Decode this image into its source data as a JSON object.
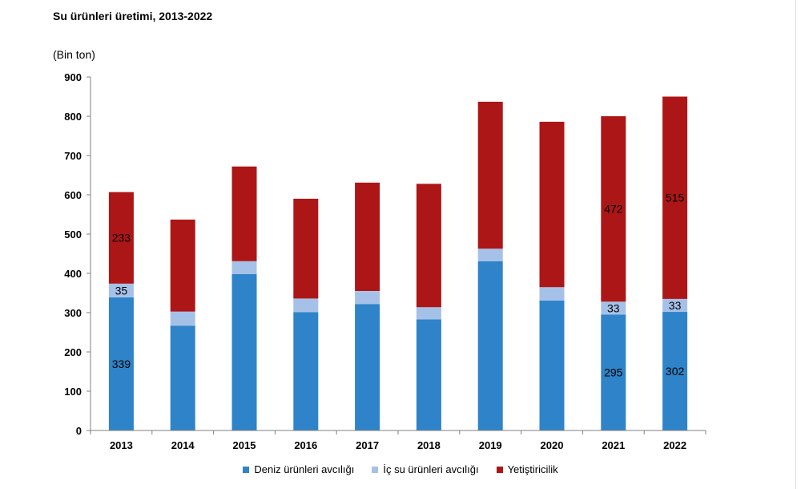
{
  "title": "Su ürünleri üretimi, 2013-2022",
  "unit_label": "(Bin ton)",
  "colors": {
    "deniz": "#2f83c8",
    "ic_su": "#a6c1e8",
    "yetistiricilik": "#ad1617"
  },
  "chart_data": {
    "type": "bar",
    "stacked": true,
    "categories": [
      "2013",
      "2014",
      "2015",
      "2016",
      "2017",
      "2018",
      "2019",
      "2020",
      "2021",
      "2022"
    ],
    "series": [
      {
        "name": "Deniz ürünleri avcılığı",
        "values": [
          339,
          267,
          398,
          301,
          322,
          283,
          431,
          331,
          295,
          302
        ]
      },
      {
        "name": "İç su ürünleri avcılığı",
        "values": [
          35,
          36,
          33,
          35,
          33,
          31,
          32,
          34,
          33,
          33
        ]
      },
      {
        "name": "Yetiştiricilik",
        "values": [
          233,
          234,
          241,
          254,
          276,
          314,
          374,
          421,
          472,
          515
        ]
      }
    ],
    "data_labels": {
      "0": {
        "0": "339",
        "1": "35",
        "2": "233"
      },
      "8": {
        "0": "295",
        "1": "33",
        "2": "472"
      },
      "9": {
        "0": "302",
        "1": "33",
        "2": "515"
      }
    },
    "ylim": [
      0,
      900
    ],
    "yticks": [
      0,
      100,
      200,
      300,
      400,
      500,
      600,
      700,
      800,
      900
    ],
    "grid": false,
    "legend_position": "bottom"
  }
}
